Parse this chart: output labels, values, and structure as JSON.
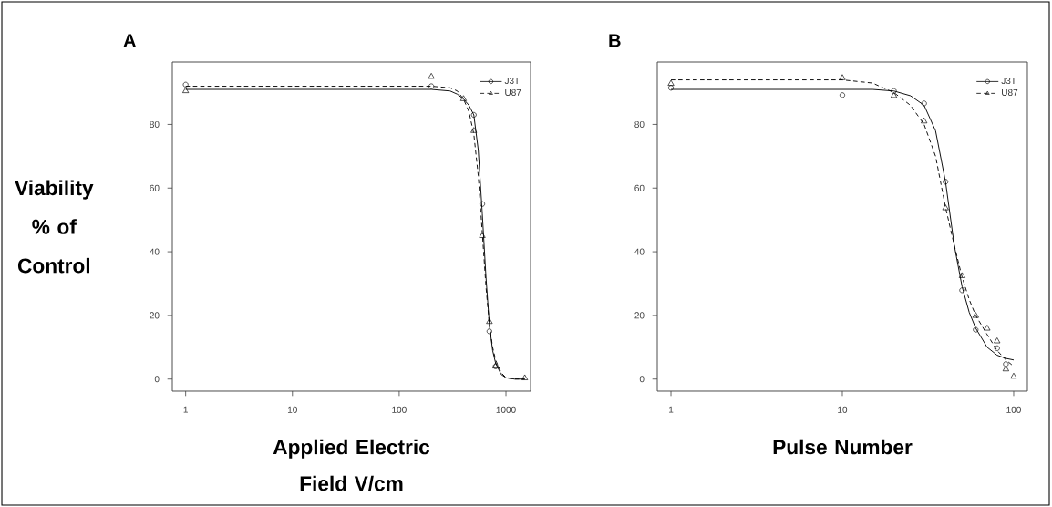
{
  "chart_data": [
    {
      "type": "scatter",
      "title": "A",
      "xlabel": "Applied Electric Field V/cm",
      "ylabel": "Viability % of Control",
      "log": "x",
      "xlim": [
        0.75,
        1700
      ],
      "ylim": [
        -3.8,
        99.6
      ],
      "xticks": [
        1,
        10,
        100,
        1000
      ],
      "yticks": [
        0,
        20,
        40,
        60,
        80
      ],
      "legend": "top right",
      "series": [
        {
          "name": "J3T",
          "marker": "circle",
          "color": "#000000",
          "x": [
            1,
            200,
            500,
            600,
            700,
            800
          ],
          "values": [
            92.5,
            92,
            83,
            55,
            15,
            4
          ]
        },
        {
          "type": "line",
          "line_style": "solid",
          "color": "#000000",
          "x": [
            1,
            100,
            200,
            300,
            350,
            400,
            450,
            500,
            550,
            600,
            650,
            700,
            750,
            800,
            900,
            1000,
            1200,
            1500
          ],
          "values": [
            91,
            91,
            91,
            90.5,
            89.5,
            88,
            86,
            83,
            72,
            52,
            32,
            17,
            9,
            5,
            1.5,
            0.4,
            0,
            0
          ]
        },
        {
          "name": "U87",
          "marker": "triangle",
          "color": "#000000",
          "x": [
            1,
            200,
            400,
            500,
            600,
            700,
            800,
            1500
          ],
          "values": [
            90.5,
            95,
            88,
            78,
            45,
            18,
            4,
            0.3
          ]
        },
        {
          "type": "line",
          "line_style": "dashed",
          "color": "#000000",
          "x": [
            1,
            100,
            200,
            300,
            350,
            400,
            450,
            500,
            550,
            600,
            650,
            700,
            750,
            800,
            900,
            1000,
            1200,
            1500
          ],
          "values": [
            92,
            92,
            92,
            91.5,
            90.5,
            88,
            84,
            77,
            64,
            46,
            29,
            17,
            10,
            6,
            2,
            0.5,
            0,
            0
          ]
        }
      ]
    },
    {
      "type": "scatter",
      "title": "B",
      "xlabel": "Pulse Number",
      "log": "x",
      "xlim": [
        0.832,
        120.2
      ],
      "ylim": [
        -3.8,
        99.6
      ],
      "xticks": [
        1,
        10,
        100
      ],
      "yticks": [
        0,
        20,
        40,
        60,
        80
      ],
      "legend": "top right",
      "series": [
        {
          "name": "J3T",
          "marker": "circle",
          "color": "#000000",
          "x": [
            1,
            10,
            20,
            30,
            40,
            50,
            60,
            80,
            90
          ],
          "values": [
            91.5,
            89.2,
            90.5,
            86.6,
            62,
            27.9,
            15.5,
            9.7,
            4.7
          ]
        },
        {
          "type": "line",
          "line_style": "solid",
          "color": "#000000",
          "x": [
            1,
            10,
            15,
            20,
            25,
            30,
            35,
            40,
            45,
            50,
            55,
            60,
            70,
            80,
            90,
            100
          ],
          "values": [
            91,
            91,
            91,
            90.5,
            89,
            86,
            78,
            62,
            42,
            29,
            21,
            16,
            10,
            7.5,
            6.5,
            6
          ]
        },
        {
          "name": "U87",
          "marker": "triangle",
          "color": "#000000",
          "x": [
            1,
            10,
            20,
            30,
            40,
            50,
            60,
            70,
            80,
            90,
            100
          ],
          "values": [
            92.8,
            94.6,
            89,
            81,
            53.7,
            32.4,
            19.9,
            15.9,
            11.9,
            3.1,
            0.8
          ]
        },
        {
          "type": "line",
          "line_style": "dashed",
          "color": "#000000",
          "x": [
            1,
            10,
            15,
            20,
            25,
            30,
            35,
            40,
            45,
            50,
            55,
            60,
            70,
            80,
            90,
            100
          ],
          "values": [
            94,
            94,
            93,
            90,
            86,
            80,
            70,
            54,
            42,
            32,
            25,
            20,
            14,
            9,
            6,
            4
          ]
        }
      ]
    }
  ]
}
